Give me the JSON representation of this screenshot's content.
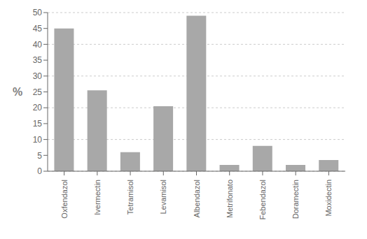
{
  "chart_data": {
    "type": "bar",
    "categories": [
      "Oxfendazol",
      "Ivermectin",
      "Tetramisol",
      "Levamisol",
      "Albendazol",
      "Metrifonato",
      "Febendazol",
      "Doramectin",
      "Moxidectin"
    ],
    "values": [
      45,
      25.5,
      6,
      20.5,
      49,
      2,
      8,
      2,
      3.5
    ],
    "color": "#a8a8a8",
    "ylabel": "%",
    "ylim": [
      0,
      50
    ],
    "yticks": [
      0,
      5,
      10,
      15,
      20,
      25,
      30,
      35,
      40,
      45,
      50
    ],
    "grid": true
  }
}
